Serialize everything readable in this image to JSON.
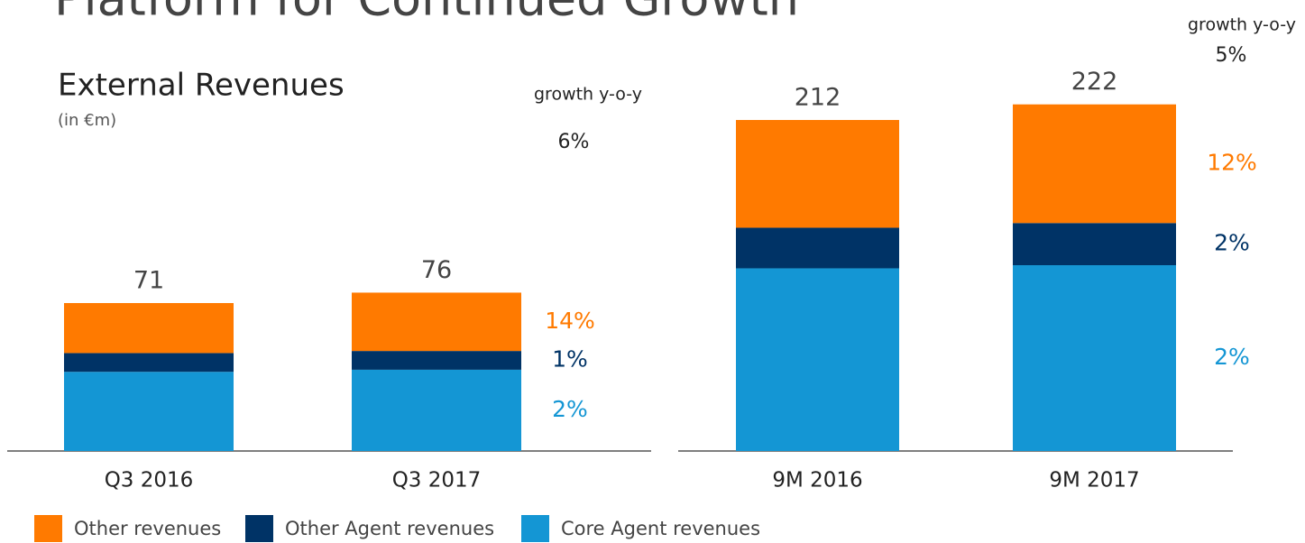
{
  "title": "Platform for Continued Growth",
  "chart_data": [
    {
      "type": "stacked_bar",
      "title": "External Revenues",
      "subtitle": "(in €m)",
      "categories": [
        "Q3 2016",
        "Q3 2017"
      ],
      "series": [
        {
          "name": "Other revenues",
          "color": "#ff7a00",
          "values": [
            24,
            28
          ]
        },
        {
          "name": "Other Agent revenues",
          "color": "#003366",
          "values": [
            9,
            9
          ]
        },
        {
          "name": "Core Agent revenues",
          "color": "#1496d4",
          "values": [
            38,
            39
          ]
        }
      ],
      "totals": [
        71,
        76
      ],
      "growth": {
        "label": "growth y-o-y",
        "total": "6%",
        "series": [
          "14%",
          "1%",
          "2%"
        ]
      }
    },
    {
      "type": "stacked_bar",
      "categories": [
        "9M 2016",
        "9M 2017"
      ],
      "series": [
        {
          "name": "Other revenues",
          "color": "#ff7a00",
          "values": [
            69,
            76
          ]
        },
        {
          "name": "Other Agent revenues",
          "color": "#003366",
          "values": [
            26,
            27
          ]
        },
        {
          "name": "Core Agent revenues",
          "color": "#1496d4",
          "values": [
            117,
            119
          ]
        }
      ],
      "totals": [
        212,
        222
      ],
      "growth": {
        "label": "growth y-o-y",
        "total": "5%",
        "series": [
          "12%",
          "2%",
          "2%"
        ]
      }
    }
  ]
}
